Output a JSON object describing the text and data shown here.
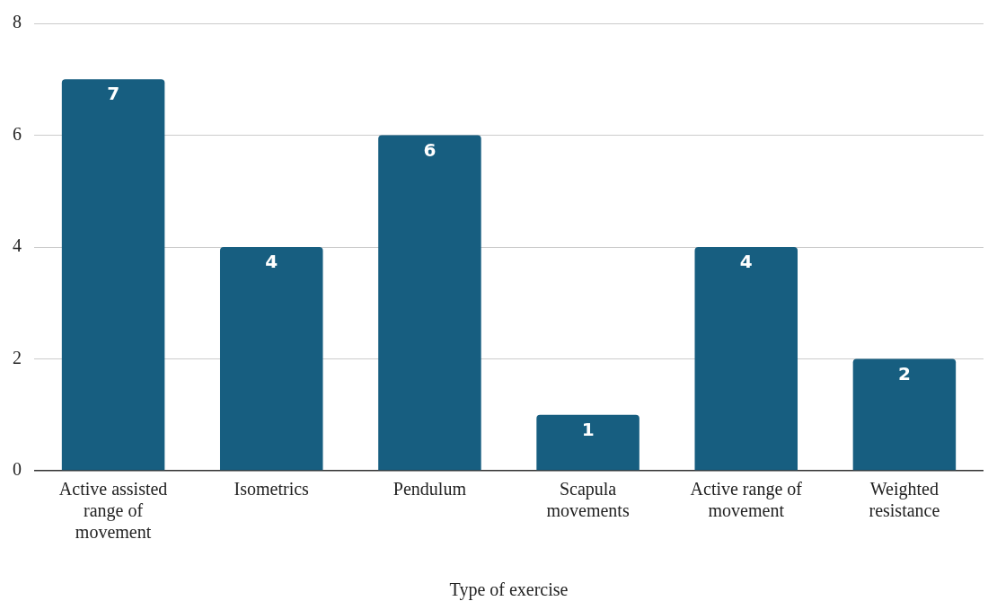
{
  "chart_data": {
    "type": "bar",
    "xlabel": "Type of exercise",
    "categories": [
      "Active assisted range of movement",
      "Isometrics",
      "Pendulum",
      "Scapula movements",
      "Active range of movement",
      "Weighted resistance"
    ],
    "values": [
      7,
      4,
      6,
      1,
      4,
      2
    ],
    "color": "#175e80",
    "ylim": [
      0,
      8
    ],
    "yticks": [
      0,
      2,
      4,
      6,
      8
    ],
    "grid": "y",
    "data_labels": true,
    "legend": false
  }
}
